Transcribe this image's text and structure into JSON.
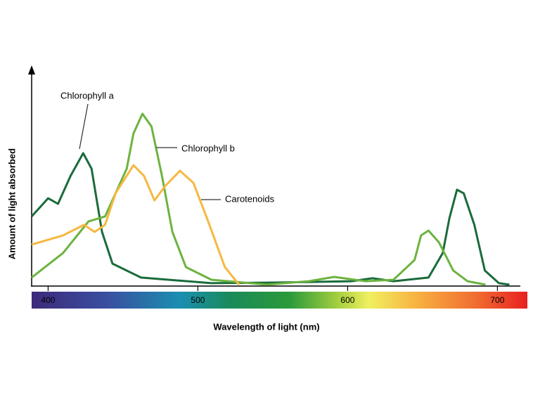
{
  "chart_data": {
    "type": "line",
    "x_label": "Wavelength of light (nm)",
    "y_label": "Amount of light absorbed",
    "xlim": [
      389,
      720
    ],
    "xticks": [
      400,
      500,
      600,
      700
    ],
    "ylim": [
      0,
      100
    ],
    "series": [
      {
        "name": "Chlorophyll a",
        "color": "#1a6b3a",
        "x": [
          389,
          400,
          406.6,
          415,
          423.4,
          429,
          436,
          443,
          462,
          509,
          556,
          602.5,
          616.6,
          630.6,
          654,
          663.5,
          668,
          673,
          677.5,
          684.6,
          691.6,
          701,
          708
        ],
        "values": [
          31.8,
          40.3,
          37.7,
          50.8,
          61.3,
          54.1,
          24.6,
          9.8,
          3.3,
          0.7,
          1,
          1.6,
          3,
          1.6,
          3.3,
          14.8,
          31.1,
          44.3,
          42.6,
          27.9,
          6.6,
          0.7,
          0
        ]
      },
      {
        "name": "Chlorophyll b",
        "color": "#6cb33f",
        "x": [
          389,
          410,
          427,
          438,
          445,
          452.5,
          457,
          463,
          469,
          476,
          483,
          492,
          509,
          546,
          574,
          591,
          612,
          630.6,
          644.7,
          649,
          654,
          661,
          670.5,
          680,
          692
        ],
        "values": [
          3.3,
          14.8,
          29.5,
          31.8,
          42.6,
          54.1,
          70.5,
          79.7,
          73.8,
          50.8,
          24.6,
          8.2,
          2.3,
          0,
          1.6,
          3.6,
          1.6,
          2.3,
          11.5,
          23,
          25.2,
          19.7,
          6.6,
          1.6,
          0
        ]
      },
      {
        "name": "Carotenoids",
        "color": "#f5b841",
        "x": [
          389,
          410,
          424,
          431,
          438,
          445,
          457,
          464,
          471,
          478,
          488,
          497,
          506,
          518,
          527.5
        ],
        "values": [
          18.7,
          23,
          27.9,
          24.6,
          27.9,
          42.6,
          55.7,
          50.8,
          39.3,
          45.9,
          53.1,
          47.5,
          31.1,
          8.2,
          0
        ]
      }
    ]
  }
}
